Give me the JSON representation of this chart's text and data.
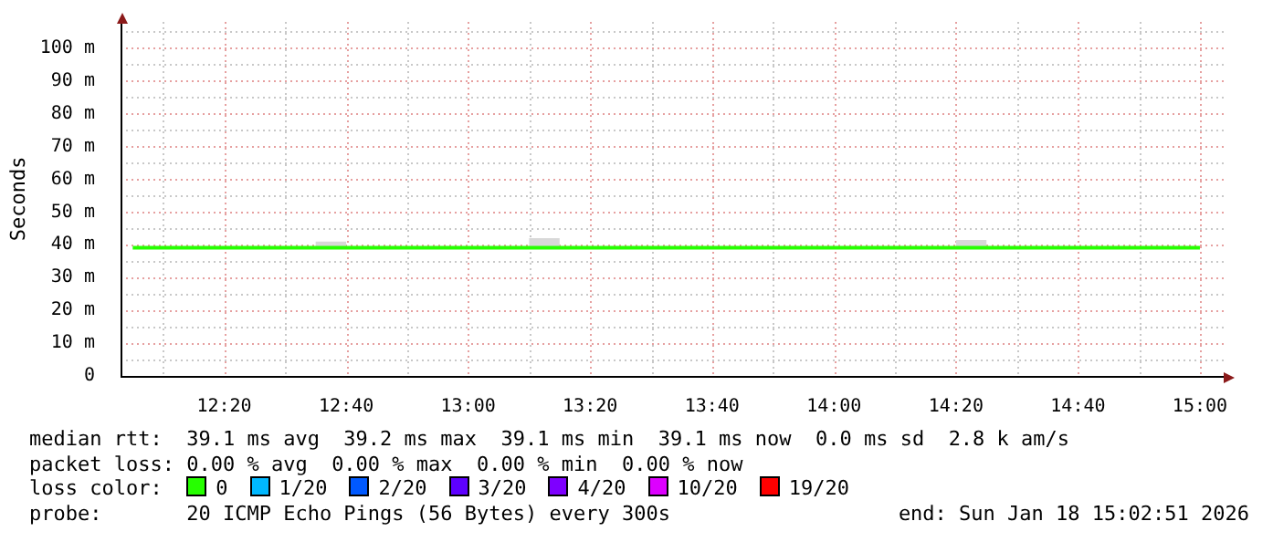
{
  "chart_data": {
    "type": "step",
    "ylabel": "Seconds",
    "legend": "bottom",
    "legend_title": "loss color:",
    "grid": true,
    "marker": "none",
    "line_style": "solid",
    "x": [
      12.0833,
      12.1667,
      12.25,
      12.3333,
      12.4167,
      12.5,
      12.5833,
      12.6667,
      12.75,
      12.8333,
      12.9167,
      13,
      13.0833,
      13.1667,
      13.25,
      13.3333,
      13.4167,
      13.5,
      13.5833,
      13.6667,
      13.75,
      13.8333,
      13.9167,
      14,
      14.0833,
      14.1667,
      14.25,
      14.3333,
      14.4167,
      14.5,
      14.5833,
      14.6667,
      14.75,
      14.8333,
      14.9167,
      15
    ],
    "xlim": [
      12.05,
      15.07
    ],
    "xticks": [
      {
        "value": 12.3333,
        "label": "12:20"
      },
      {
        "value": 12.6667,
        "label": "12:40"
      },
      {
        "value": 13,
        "label": "13:00"
      },
      {
        "value": 13.3333,
        "label": "13:20"
      },
      {
        "value": 13.6667,
        "label": "13:40"
      },
      {
        "value": 14,
        "label": "14:00"
      },
      {
        "value": 14.3333,
        "label": "14:20"
      },
      {
        "value": 14.6667,
        "label": "14:40"
      },
      {
        "value": 15,
        "label": "15:00"
      }
    ],
    "ylim": [
      0,
      108
    ],
    "yticks": [
      0,
      {
        "value": 10,
        "label": "10 m"
      },
      {
        "value": 20,
        "label": "20 m"
      },
      {
        "value": 30,
        "label": "30 m"
      },
      {
        "value": 40,
        "label": "40 m"
      },
      {
        "value": 50,
        "label": "50 m"
      },
      {
        "value": 60,
        "label": "60 m"
      },
      {
        "value": 70,
        "label": "70 m"
      },
      {
        "value": 80,
        "label": "80 m"
      },
      {
        "value": 90,
        "label": "90 m"
      },
      {
        "value": 100,
        "label": "100 m"
      }
    ],
    "series": [
      {
        "name": "0",
        "color": "#26ff00",
        "values": [
          39.1,
          39.1,
          39.1,
          39.1,
          39.1,
          39.1,
          39.1,
          39.1,
          39.1,
          39.1,
          39.1,
          39.1,
          39.1,
          39.1,
          39.1,
          39.1,
          39.1,
          39.1,
          39.1,
          39.1,
          39.1,
          39.1,
          39.1,
          39.1,
          39.1,
          39.1,
          39.1,
          39.1,
          39.1,
          39.1,
          39.1,
          39.1,
          39.1,
          39.1,
          39.1,
          39.1
        ],
        "lower": [
          39.1,
          39.1,
          39.1,
          39.1,
          39.1,
          39.1,
          39.1,
          39.1,
          39.1,
          39.1,
          39.1,
          39.1,
          39.1,
          39.1,
          39.1,
          39.1,
          39.1,
          39.1,
          39.1,
          39.1,
          39.1,
          39.1,
          39.1,
          39.1,
          39.1,
          39.1,
          39.1,
          39.1,
          39.1,
          39.1,
          39.1,
          39.1,
          39.1,
          39.1,
          39.1,
          39.1
        ],
        "upper": [
          39.1,
          39.1,
          39.1,
          39.1,
          39.1,
          39.1,
          41,
          39.1,
          39.1,
          39.1,
          39.1,
          39.1,
          39.1,
          42,
          39.1,
          39.1,
          39.1,
          39.1,
          39.1,
          39.1,
          39.1,
          39.1,
          39.1,
          39.1,
          39.1,
          39.1,
          39.1,
          41.5,
          39.1,
          39.1,
          39.1,
          39.1,
          39.1,
          39.1,
          39.1,
          39.1
        ]
      },
      {
        "name": "1/20",
        "color": "#00b8ff",
        "values": [
          null,
          null,
          null,
          null,
          null,
          null,
          null,
          null,
          null,
          null,
          null,
          null,
          null,
          null,
          null,
          null,
          null,
          null,
          null,
          null,
          null,
          null,
          null,
          null,
          null,
          null,
          null,
          null,
          null,
          null,
          null,
          null,
          null,
          null,
          null,
          null
        ]
      },
      {
        "name": "2/20",
        "color": "#0059ff",
        "values": [
          null,
          null,
          null,
          null,
          null,
          null,
          null,
          null,
          null,
          null,
          null,
          null,
          null,
          null,
          null,
          null,
          null,
          null,
          null,
          null,
          null,
          null,
          null,
          null,
          null,
          null,
          null,
          null,
          null,
          null,
          null,
          null,
          null,
          null,
          null,
          null
        ]
      },
      {
        "name": "3/20",
        "color": "#5e00ff",
        "values": [
          null,
          null,
          null,
          null,
          null,
          null,
          null,
          null,
          null,
          null,
          null,
          null,
          null,
          null,
          null,
          null,
          null,
          null,
          null,
          null,
          null,
          null,
          null,
          null,
          null,
          null,
          null,
          null,
          null,
          null,
          null,
          null,
          null,
          null,
          null,
          null
        ]
      },
      {
        "name": "4/20",
        "color": "#7e00ff",
        "values": [
          null,
          null,
          null,
          null,
          null,
          null,
          null,
          null,
          null,
          null,
          null,
          null,
          null,
          null,
          null,
          null,
          null,
          null,
          null,
          null,
          null,
          null,
          null,
          null,
          null,
          null,
          null,
          null,
          null,
          null,
          null,
          null,
          null,
          null,
          null,
          null
        ]
      },
      {
        "name": "10/20",
        "color": "#dd00ff",
        "values": [
          null,
          null,
          null,
          null,
          null,
          null,
          null,
          null,
          null,
          null,
          null,
          null,
          null,
          null,
          null,
          null,
          null,
          null,
          null,
          null,
          null,
          null,
          null,
          null,
          null,
          null,
          null,
          null,
          null,
          null,
          null,
          null,
          null,
          null,
          null,
          null
        ]
      },
      {
        "name": "19/20",
        "color": "#ff0000",
        "values": [
          null,
          null,
          null,
          null,
          null,
          null,
          null,
          null,
          null,
          null,
          null,
          null,
          null,
          null,
          null,
          null,
          null,
          null,
          null,
          null,
          null,
          null,
          null,
          null,
          null,
          null,
          null,
          null,
          null,
          null,
          null,
          null,
          null,
          null,
          null,
          null
        ]
      }
    ],
    "annotations": [
      "median rtt:  39.1 ms avg  39.2 ms max  39.1 ms min  39.1 ms now  0.0 ms sd  2.8 k am/s",
      "packet loss: 0.00 % avg  0.00 % max  0.00 % min  0.00 % now",
      "probe:       20 ICMP Echo Pings (56 Bytes) every 300s",
      "end: Sun Jan 18 15:02:51 2026"
    ]
  }
}
